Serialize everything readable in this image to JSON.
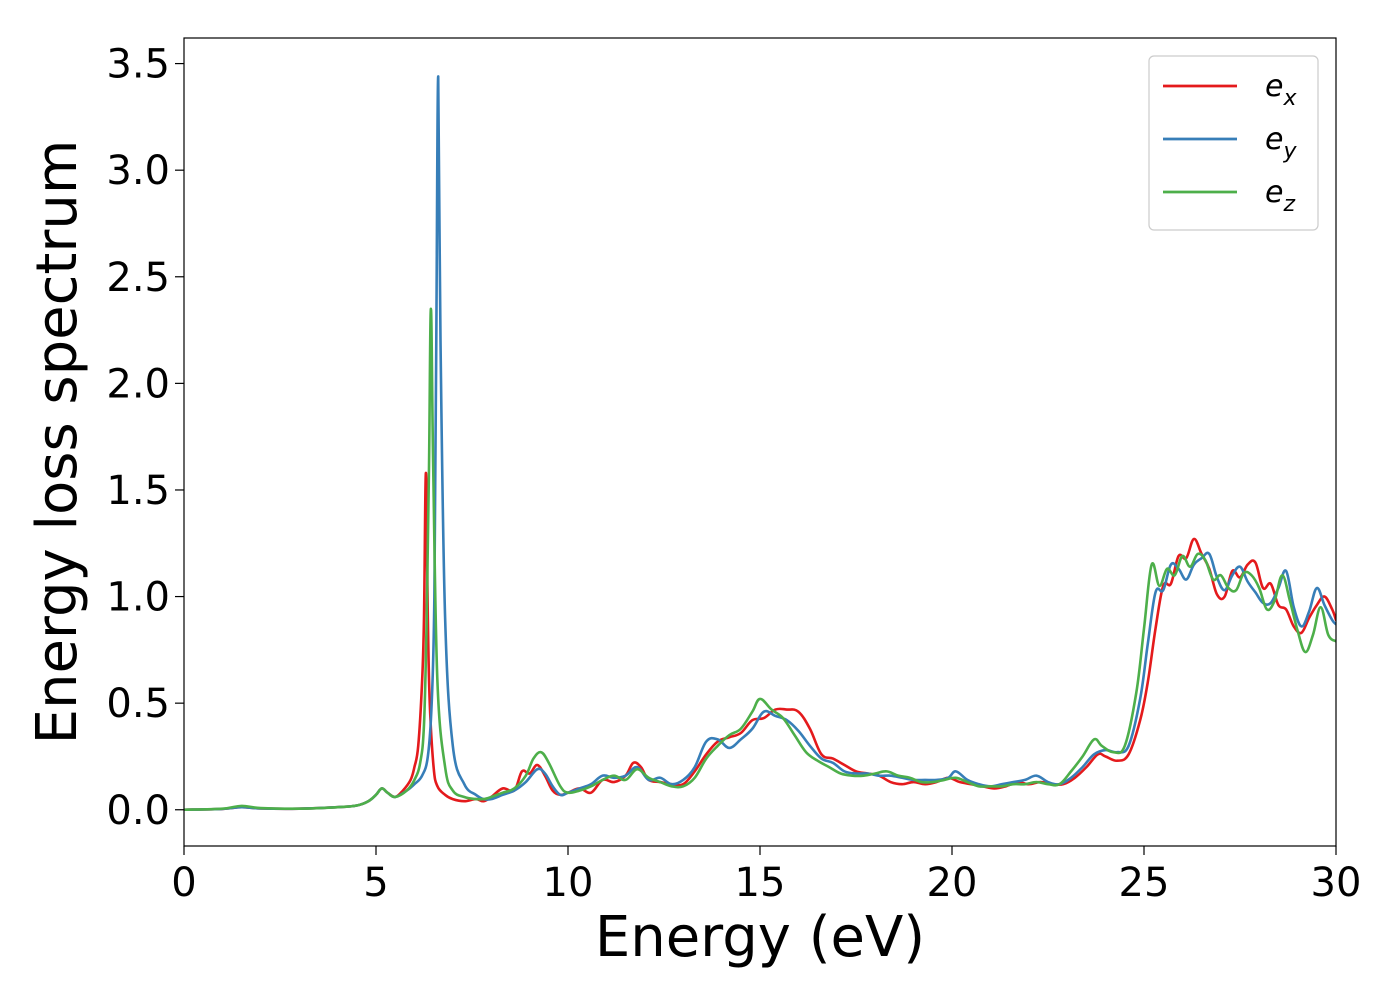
{
  "chart_data": {
    "type": "line",
    "title": "",
    "xlabel": "Energy (eV)",
    "ylabel": "Energy loss spectrum",
    "xlim": [
      0,
      30
    ],
    "ylim": [
      -0.17,
      3.62
    ],
    "xticks": [
      0,
      5,
      10,
      15,
      20,
      25,
      30
    ],
    "xtick_labels": [
      "0",
      "5",
      "10",
      "15",
      "20",
      "25",
      "30"
    ],
    "yticks": [
      0.0,
      0.5,
      1.0,
      1.5,
      2.0,
      2.5,
      3.0,
      3.5
    ],
    "ytick_labels": [
      "0.0",
      "0.5",
      "1.0",
      "1.5",
      "2.0",
      "2.5",
      "3.0",
      "3.5"
    ],
    "grid": false,
    "legend_position": "top-right",
    "series": [
      {
        "name": "e_x",
        "legend_base": "e",
        "legend_sub": "x",
        "color": "#e41a1c",
        "x": [
          0,
          1.0,
          1.5,
          2.0,
          3.0,
          4.0,
          4.5,
          4.8,
          5.0,
          5.15,
          5.3,
          5.5,
          5.7,
          5.9,
          6.0,
          6.1,
          6.2,
          6.25,
          6.3,
          6.35,
          6.4,
          6.5,
          6.6,
          6.8,
          7.0,
          7.3,
          7.6,
          7.8,
          8.0,
          8.3,
          8.6,
          8.8,
          9.0,
          9.2,
          9.4,
          9.6,
          9.8,
          10.0,
          10.3,
          10.6,
          10.9,
          11.2,
          11.5,
          11.7,
          11.9,
          12.1,
          12.4,
          12.7,
          13.0,
          13.3,
          13.6,
          13.9,
          14.2,
          14.5,
          14.8,
          15.1,
          15.4,
          15.7,
          16.0,
          16.3,
          16.6,
          16.9,
          17.2,
          17.5,
          17.8,
          18.1,
          18.4,
          18.7,
          19.0,
          19.3,
          19.6,
          19.9,
          20.2,
          20.5,
          20.8,
          21.1,
          21.4,
          21.7,
          22.0,
          22.3,
          22.6,
          22.9,
          23.2,
          23.5,
          23.8,
          24.0,
          24.3,
          24.6,
          24.9,
          25.1,
          25.3,
          25.5,
          25.7,
          25.9,
          26.1,
          26.3,
          26.5,
          26.7,
          26.9,
          27.1,
          27.3,
          27.5,
          27.7,
          27.9,
          28.1,
          28.3,
          28.5,
          28.7,
          28.9,
          29.1,
          29.3,
          29.5,
          29.7,
          29.9,
          30.0
        ],
        "y": [
          0.0,
          0.004,
          0.012,
          0.006,
          0.005,
          0.012,
          0.02,
          0.04,
          0.07,
          0.1,
          0.08,
          0.06,
          0.09,
          0.14,
          0.2,
          0.3,
          0.6,
          0.9,
          1.58,
          0.9,
          0.5,
          0.2,
          0.11,
          0.07,
          0.05,
          0.04,
          0.05,
          0.04,
          0.06,
          0.1,
          0.09,
          0.18,
          0.17,
          0.21,
          0.16,
          0.09,
          0.07,
          0.08,
          0.1,
          0.08,
          0.14,
          0.13,
          0.16,
          0.22,
          0.2,
          0.14,
          0.13,
          0.12,
          0.12,
          0.18,
          0.26,
          0.32,
          0.34,
          0.36,
          0.42,
          0.43,
          0.47,
          0.47,
          0.46,
          0.38,
          0.26,
          0.24,
          0.21,
          0.18,
          0.17,
          0.16,
          0.13,
          0.12,
          0.13,
          0.12,
          0.13,
          0.15,
          0.13,
          0.12,
          0.11,
          0.1,
          0.11,
          0.13,
          0.12,
          0.13,
          0.12,
          0.12,
          0.15,
          0.2,
          0.26,
          0.25,
          0.23,
          0.26,
          0.42,
          0.6,
          0.85,
          1.05,
          1.06,
          1.19,
          1.18,
          1.27,
          1.2,
          1.13,
          1.01,
          1.0,
          1.12,
          1.09,
          1.15,
          1.16,
          1.04,
          1.06,
          0.96,
          0.94,
          0.86,
          0.83,
          0.9,
          0.96,
          1.0,
          0.94,
          0.89
        ]
      },
      {
        "name": "e_y",
        "legend_base": "e",
        "legend_sub": "y",
        "color": "#377eb8",
        "x": [
          0,
          1.0,
          1.5,
          2.0,
          3.0,
          4.0,
          4.5,
          4.8,
          5.0,
          5.15,
          5.3,
          5.5,
          5.8,
          6.0,
          6.2,
          6.35,
          6.45,
          6.52,
          6.57,
          6.62,
          6.68,
          6.8,
          7.0,
          7.3,
          7.6,
          7.8,
          8.0,
          8.3,
          8.6,
          8.9,
          9.2,
          9.4,
          9.6,
          9.8,
          10.0,
          10.3,
          10.6,
          10.9,
          11.2,
          11.5,
          11.8,
          12.1,
          12.4,
          12.7,
          13.0,
          13.3,
          13.6,
          13.9,
          14.2,
          14.5,
          14.8,
          15.1,
          15.4,
          15.7,
          16.0,
          16.3,
          16.6,
          16.9,
          17.2,
          17.5,
          17.8,
          18.1,
          18.4,
          18.7,
          19.0,
          19.3,
          19.6,
          19.9,
          20.1,
          20.4,
          20.7,
          21.0,
          21.3,
          21.6,
          21.9,
          22.2,
          22.5,
          22.8,
          23.1,
          23.4,
          23.7,
          24.0,
          24.3,
          24.6,
          24.9,
          25.1,
          25.3,
          25.5,
          25.7,
          25.9,
          26.1,
          26.3,
          26.5,
          26.7,
          26.9,
          27.1,
          27.3,
          27.5,
          27.7,
          27.9,
          28.1,
          28.3,
          28.5,
          28.7,
          28.9,
          29.1,
          29.3,
          29.5,
          29.7,
          29.9,
          30.0
        ],
        "y": [
          0.0,
          0.004,
          0.012,
          0.006,
          0.005,
          0.012,
          0.02,
          0.04,
          0.07,
          0.1,
          0.08,
          0.06,
          0.09,
          0.12,
          0.16,
          0.25,
          0.5,
          1.0,
          2.2,
          3.44,
          2.2,
          0.9,
          0.3,
          0.12,
          0.07,
          0.05,
          0.05,
          0.07,
          0.09,
          0.13,
          0.19,
          0.17,
          0.11,
          0.07,
          0.08,
          0.1,
          0.12,
          0.16,
          0.15,
          0.16,
          0.2,
          0.14,
          0.15,
          0.12,
          0.14,
          0.2,
          0.32,
          0.33,
          0.29,
          0.33,
          0.38,
          0.46,
          0.44,
          0.42,
          0.37,
          0.3,
          0.24,
          0.22,
          0.18,
          0.17,
          0.17,
          0.16,
          0.16,
          0.15,
          0.14,
          0.14,
          0.14,
          0.15,
          0.18,
          0.14,
          0.12,
          0.11,
          0.12,
          0.13,
          0.14,
          0.16,
          0.13,
          0.12,
          0.15,
          0.2,
          0.26,
          0.28,
          0.27,
          0.3,
          0.52,
          0.78,
          1.02,
          1.03,
          1.15,
          1.13,
          1.08,
          1.15,
          1.18,
          1.2,
          1.09,
          1.03,
          1.1,
          1.14,
          1.07,
          1.02,
          0.97,
          0.97,
          1.04,
          1.12,
          0.95,
          0.86,
          0.93,
          1.04,
          0.96,
          0.89,
          0.87
        ]
      },
      {
        "name": "e_z",
        "legend_base": "e",
        "legend_sub": "z",
        "color": "#4daf4a",
        "x": [
          0,
          1.0,
          1.5,
          2.0,
          3.0,
          4.0,
          4.5,
          4.8,
          5.0,
          5.15,
          5.3,
          5.5,
          5.8,
          6.0,
          6.15,
          6.25,
          6.32,
          6.38,
          6.43,
          6.49,
          6.6,
          6.8,
          7.0,
          7.3,
          7.6,
          7.8,
          8.0,
          8.3,
          8.6,
          8.9,
          9.1,
          9.3,
          9.5,
          9.8,
          10.0,
          10.3,
          10.6,
          10.9,
          11.2,
          11.5,
          11.8,
          12.1,
          12.4,
          12.7,
          13.0,
          13.3,
          13.6,
          13.9,
          14.2,
          14.5,
          14.8,
          15.0,
          15.3,
          15.6,
          15.9,
          16.2,
          16.5,
          16.8,
          17.1,
          17.4,
          17.7,
          18.0,
          18.3,
          18.6,
          18.9,
          19.2,
          19.5,
          19.8,
          20.1,
          20.4,
          20.7,
          21.0,
          21.3,
          21.6,
          21.9,
          22.2,
          22.5,
          22.8,
          23.1,
          23.4,
          23.7,
          23.9,
          24.2,
          24.5,
          24.8,
          25.0,
          25.2,
          25.4,
          25.6,
          25.8,
          26.0,
          26.2,
          26.4,
          26.6,
          26.8,
          27.0,
          27.2,
          27.4,
          27.6,
          27.8,
          28.0,
          28.2,
          28.4,
          28.6,
          28.8,
          29.0,
          29.2,
          29.4,
          29.6,
          29.8,
          30.0
        ],
        "y": [
          0.0,
          0.005,
          0.018,
          0.008,
          0.005,
          0.012,
          0.02,
          0.04,
          0.07,
          0.1,
          0.08,
          0.06,
          0.09,
          0.14,
          0.22,
          0.4,
          0.9,
          1.6,
          2.35,
          1.6,
          0.6,
          0.2,
          0.09,
          0.06,
          0.05,
          0.05,
          0.06,
          0.08,
          0.1,
          0.16,
          0.24,
          0.27,
          0.22,
          0.11,
          0.08,
          0.09,
          0.11,
          0.14,
          0.16,
          0.14,
          0.19,
          0.15,
          0.13,
          0.11,
          0.11,
          0.15,
          0.24,
          0.3,
          0.35,
          0.38,
          0.46,
          0.52,
          0.47,
          0.43,
          0.35,
          0.27,
          0.23,
          0.2,
          0.17,
          0.16,
          0.16,
          0.17,
          0.18,
          0.16,
          0.15,
          0.13,
          0.13,
          0.14,
          0.15,
          0.13,
          0.11,
          0.11,
          0.11,
          0.12,
          0.12,
          0.13,
          0.12,
          0.12,
          0.18,
          0.25,
          0.33,
          0.3,
          0.27,
          0.3,
          0.55,
          0.85,
          1.15,
          1.05,
          1.13,
          1.1,
          1.19,
          1.14,
          1.2,
          1.17,
          1.08,
          1.1,
          1.04,
          1.03,
          1.11,
          1.1,
          1.04,
          0.94,
          0.98,
          1.1,
          0.98,
          0.84,
          0.74,
          0.82,
          0.95,
          0.82,
          0.79
        ]
      }
    ]
  }
}
